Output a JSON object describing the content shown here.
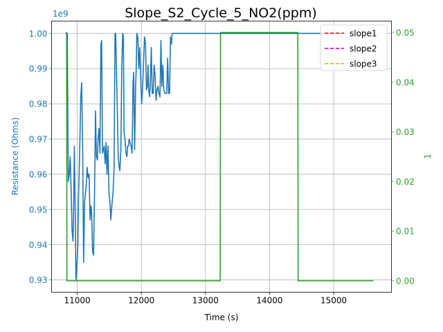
{
  "chart_data": {
    "type": "line",
    "title": "Slope_S2_Cycle_5_NO2(ppm)",
    "xlabel": "Time (s)",
    "ylabel_left": "Resistance (Ohms)",
    "ylabel_right": "1",
    "offset_label": "1e9",
    "xlim": [
      10600,
      15900
    ],
    "ylim_left": [
      0.9265,
      1.0035
    ],
    "ylim_right": [
      -0.0023,
      0.0523
    ],
    "x_ticks": [
      "11000",
      "12000",
      "13000",
      "14000",
      "15000"
    ],
    "y_left_ticks": [
      "0.93",
      "0.94",
      "0.95",
      "0.96",
      "0.97",
      "0.98",
      "0.99",
      "1.00"
    ],
    "y_right_ticks": [
      "0.00",
      "0.01",
      "0.02",
      "0.03",
      "0.04",
      "0.05"
    ],
    "grid": true,
    "legend_position": "top-right",
    "colors": {
      "resistance": "#1f77b4",
      "target": "#2ca02c",
      "slope1": "#ff0000",
      "slope2": "#bf00bf",
      "slope3": "#bfbf00",
      "axis_left": "#1f77b4",
      "axis_right": "#2ca02c"
    },
    "series": [
      {
        "name": "",
        "axis": "left",
        "x": [
          10820,
          10845,
          10860,
          10875,
          10890,
          10905,
          10920,
          10935,
          10945,
          10955,
          10970,
          10980,
          10990,
          11000,
          11010,
          11020,
          11030,
          11040,
          11055,
          11070,
          11085,
          11100,
          11115,
          11130,
          11145,
          11155,
          11170,
          11185,
          11200,
          11215,
          11225,
          11240,
          11255,
          11270,
          11285,
          11300,
          11315,
          11325,
          11340,
          11355,
          11370,
          11380,
          11395,
          11410,
          11420,
          11435,
          11450,
          11465,
          11480,
          11495,
          11510,
          11525,
          11535,
          11545,
          11560,
          11575,
          11590,
          11600,
          11610,
          11625,
          11640,
          11655,
          11665,
          11680,
          11695,
          11710,
          11720,
          11730,
          11745,
          11760,
          11775,
          11785,
          11800,
          11810,
          11825,
          11840,
          11855,
          11870,
          11880,
          11895,
          11910,
          11920,
          11930,
          11945,
          11960,
          11975,
          11990,
          12005,
          12020,
          12035,
          12050,
          12065,
          12080,
          12095,
          12105,
          12115,
          12130,
          12140,
          12155,
          12170,
          12185,
          12200,
          12215,
          12230,
          12245,
          12260,
          12275,
          12290,
          12305,
          12320,
          12335,
          12350,
          12365,
          12380,
          12395,
          12410,
          12425,
          12440,
          12455,
          12470,
          12480,
          12490,
          12500,
          12510,
          12520,
          12600,
          13000,
          14000,
          15000,
          15200
        ],
        "y": [
          1.0,
          1.0,
          0.958,
          0.96,
          0.965,
          0.955,
          0.944,
          0.941,
          0.952,
          0.968,
          0.948,
          0.93,
          0.932,
          0.936,
          0.94,
          0.953,
          0.96,
          0.968,
          0.982,
          0.986,
          0.968,
          0.935,
          0.952,
          0.955,
          0.958,
          0.962,
          0.959,
          0.96,
          0.947,
          0.951,
          0.949,
          0.938,
          0.937,
          0.955,
          0.978,
          0.965,
          0.964,
          0.97,
          0.973,
          0.966,
          0.997,
          0.998,
          0.966,
          0.967,
          0.968,
          0.963,
          0.969,
          0.96,
          0.968,
          0.955,
          0.952,
          0.947,
          0.95,
          0.952,
          0.955,
          0.962,
          1.0,
          1.0,
          0.991,
          0.978,
          0.965,
          0.962,
          0.961,
          0.967,
          0.99,
          1.0,
          0.999,
          0.972,
          0.97,
          0.966,
          0.965,
          0.968,
          0.968,
          0.97,
          0.969,
          0.968,
          0.966,
          0.986,
          0.989,
          0.967,
          0.985,
          0.99,
          1.0,
          0.999,
          0.99,
          0.996,
          0.987,
          0.98,
          0.985,
          0.992,
          0.999,
          0.997,
          0.984,
          0.985,
          0.991,
          0.984,
          0.982,
          0.986,
          0.996,
          0.983,
          0.983,
          0.991,
          0.988,
          0.981,
          0.984,
          0.985,
          0.983,
          0.982,
          0.998,
          0.985,
          0.991,
          0.984,
          0.983,
          0.983,
          0.983,
          0.993,
          0.983,
          0.983,
          0.999,
          0.997,
          1.0,
          1.0,
          1.0,
          1.0,
          1.0,
          1.0,
          1.0,
          1.0,
          1.0,
          1.0
        ]
      },
      {
        "name": "",
        "axis": "right",
        "x": [
          10820,
          10835,
          10840,
          13230,
          13235,
          14440,
          14445,
          15620
        ],
        "y": [
          0.05,
          0.05,
          0.0,
          0.0,
          0.05,
          0.05,
          0.0,
          0.0
        ]
      },
      {
        "name": "slope1",
        "axis": "left",
        "x": [],
        "y": []
      },
      {
        "name": "slope2",
        "axis": "left",
        "x": [],
        "y": []
      },
      {
        "name": "slope3",
        "axis": "left",
        "x": [],
        "y": []
      }
    ]
  }
}
